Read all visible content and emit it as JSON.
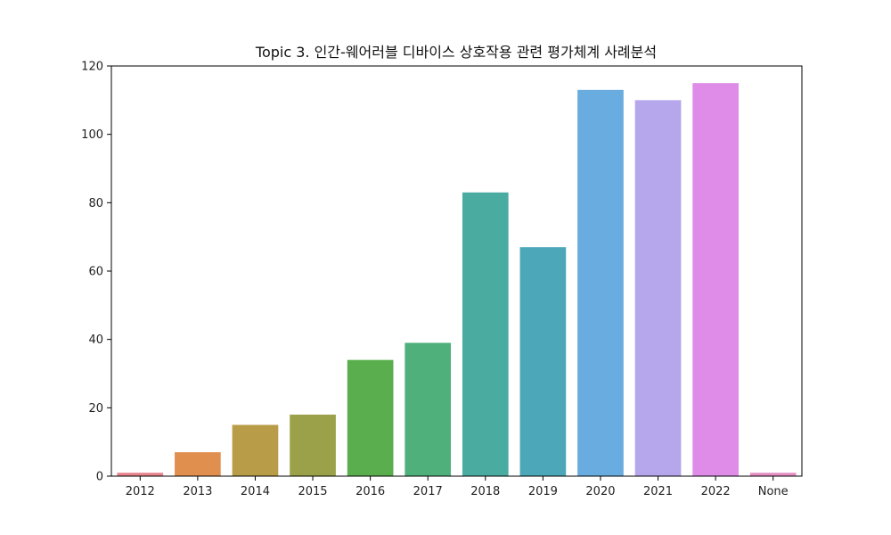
{
  "chart_data": {
    "type": "bar",
    "title": "Topic 3. 인간-웨어러블 디바이스 상호작용 관련 평가체계 사례분석",
    "xlabel": "",
    "ylabel": "",
    "categories": [
      "2012",
      "2013",
      "2014",
      "2015",
      "2016",
      "2017",
      "2018",
      "2019",
      "2020",
      "2021",
      "2022",
      "None"
    ],
    "values": [
      1,
      7,
      15,
      18,
      34,
      39,
      83,
      67,
      113,
      110,
      115,
      1
    ],
    "colors": [
      "#e8848c",
      "#e08f4f",
      "#b99c48",
      "#9ba149",
      "#5aae4d",
      "#4fb07b",
      "#4aaca1",
      "#4ca8b8",
      "#69acdf",
      "#b6a6eb",
      "#de8ce8",
      "#e68fc5"
    ],
    "ylim": [
      0,
      120
    ],
    "yticks": [
      0,
      20,
      40,
      60,
      80,
      100,
      120
    ],
    "grid": false,
    "legend": "none"
  }
}
